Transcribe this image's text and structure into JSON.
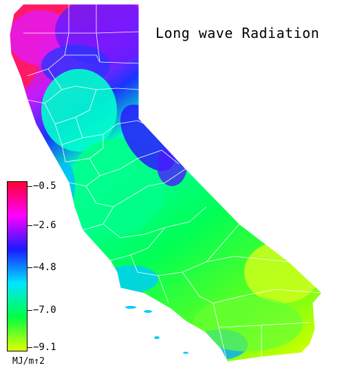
{
  "title": "Long wave Radiation",
  "colorbar": {
    "units": "MJ/m↑2",
    "ticks": [
      "−0.5",
      "−2.6",
      "−4.8",
      "−7.0",
      "−9.1"
    ],
    "colors": [
      "#ff0033",
      "#ff00ff",
      "#1a1aff",
      "#00e6ff",
      "#00ff44",
      "#dfff00"
    ]
  },
  "map": {
    "region": "California",
    "colors": {
      "north_coast": "#ff1a66",
      "north_mountains": "#7a1aff",
      "sierra": "#1a33ff",
      "central_valley": "#00ffbb",
      "south_coast": "#00ccff",
      "desert": "#b3ff33",
      "boundaries": "#ffffff"
    }
  }
}
